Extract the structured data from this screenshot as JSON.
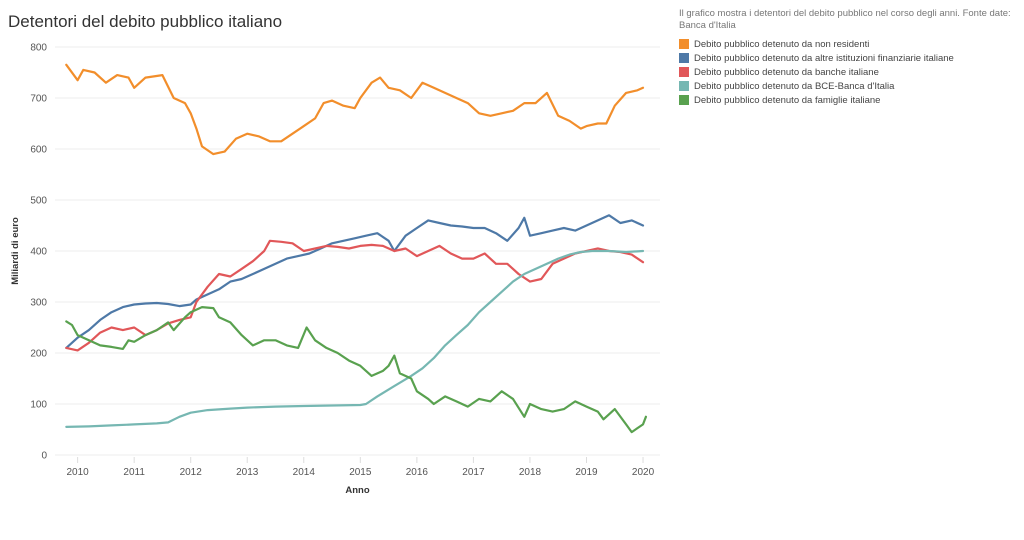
{
  "title": "Detentori del debito pubblico italiano",
  "colors": {
    "non_residenti": "#f28e2b",
    "altre_istituzioni": "#4e79a7",
    "banche": "#e15759",
    "bce": "#76b7b2",
    "famiglie": "#59a14f",
    "grid": "#eeeeee",
    "axis_text": "#555555"
  },
  "legend": {
    "description": "Il grafico mostra i detentori del debito pubblico nel corso degli anni. Fonte date: Banca d'Italia",
    "items": [
      "Debito pubblico detenuto da non residenti",
      "Debito pubblico detenuto da altre istituzioni finanziarie italiane",
      "Debito pubblico detenuto da banche italiane",
      "Debito pubblico detenuto da BCE-Banca d'Italia",
      "Debito pubblico detenuto da famiglie italiane"
    ]
  },
  "chart_data": {
    "type": "line",
    "title": "Detentori del debito pubblico italiano",
    "xlabel": "Anno",
    "ylabel": "Miliardi di euro",
    "xlim": [
      2009.6,
      2020.3
    ],
    "ylim": [
      0,
      800
    ],
    "xticks": [
      2010,
      2011,
      2012,
      2013,
      2014,
      2015,
      2016,
      2017,
      2018,
      2019,
      2020
    ],
    "yticks": [
      0,
      100,
      200,
      300,
      400,
      500,
      600,
      700,
      800
    ],
    "grid": true,
    "legend_position": "top-right",
    "series": [
      {
        "name": "Debito pubblico detenuto da non residenti",
        "color_key": "non_residenti",
        "points": [
          [
            2009.8,
            765
          ],
          [
            2010.0,
            735
          ],
          [
            2010.1,
            755
          ],
          [
            2010.3,
            750
          ],
          [
            2010.5,
            730
          ],
          [
            2010.7,
            745
          ],
          [
            2010.9,
            740
          ],
          [
            2011.0,
            720
          ],
          [
            2011.2,
            740
          ],
          [
            2011.5,
            745
          ],
          [
            2011.7,
            700
          ],
          [
            2011.9,
            690
          ],
          [
            2012.0,
            670
          ],
          [
            2012.1,
            640
          ],
          [
            2012.2,
            605
          ],
          [
            2012.4,
            590
          ],
          [
            2012.6,
            595
          ],
          [
            2012.8,
            620
          ],
          [
            2013.0,
            630
          ],
          [
            2013.2,
            625
          ],
          [
            2013.4,
            615
          ],
          [
            2013.6,
            615
          ],
          [
            2013.8,
            630
          ],
          [
            2014.0,
            645
          ],
          [
            2014.2,
            660
          ],
          [
            2014.35,
            690
          ],
          [
            2014.5,
            695
          ],
          [
            2014.7,
            685
          ],
          [
            2014.9,
            680
          ],
          [
            2015.0,
            700
          ],
          [
            2015.2,
            730
          ],
          [
            2015.35,
            740
          ],
          [
            2015.5,
            720
          ],
          [
            2015.7,
            715
          ],
          [
            2015.9,
            700
          ],
          [
            2016.1,
            730
          ],
          [
            2016.3,
            720
          ],
          [
            2016.5,
            710
          ],
          [
            2016.7,
            700
          ],
          [
            2016.9,
            690
          ],
          [
            2017.1,
            670
          ],
          [
            2017.3,
            665
          ],
          [
            2017.5,
            670
          ],
          [
            2017.7,
            675
          ],
          [
            2017.9,
            690
          ],
          [
            2018.1,
            690
          ],
          [
            2018.3,
            710
          ],
          [
            2018.5,
            665
          ],
          [
            2018.7,
            655
          ],
          [
            2018.9,
            640
          ],
          [
            2019.0,
            645
          ],
          [
            2019.2,
            650
          ],
          [
            2019.35,
            650
          ],
          [
            2019.5,
            685
          ],
          [
            2019.7,
            710
          ],
          [
            2019.9,
            715
          ],
          [
            2020.0,
            720
          ]
        ]
      },
      {
        "name": "Debito pubblico detenuto da altre istituzioni finanziarie italiane",
        "color_key": "altre_istituzioni",
        "points": [
          [
            2009.8,
            210
          ],
          [
            2010.0,
            230
          ],
          [
            2010.2,
            245
          ],
          [
            2010.4,
            265
          ],
          [
            2010.6,
            280
          ],
          [
            2010.8,
            290
          ],
          [
            2011.0,
            295
          ],
          [
            2011.2,
            297
          ],
          [
            2011.4,
            298
          ],
          [
            2011.6,
            296
          ],
          [
            2011.8,
            292
          ],
          [
            2012.0,
            295
          ],
          [
            2012.1,
            305
          ],
          [
            2012.3,
            315
          ],
          [
            2012.5,
            325
          ],
          [
            2012.7,
            340
          ],
          [
            2012.9,
            345
          ],
          [
            2013.1,
            355
          ],
          [
            2013.3,
            365
          ],
          [
            2013.5,
            375
          ],
          [
            2013.7,
            385
          ],
          [
            2013.9,
            390
          ],
          [
            2014.1,
            395
          ],
          [
            2014.3,
            405
          ],
          [
            2014.5,
            415
          ],
          [
            2014.7,
            420
          ],
          [
            2014.9,
            425
          ],
          [
            2015.1,
            430
          ],
          [
            2015.3,
            435
          ],
          [
            2015.5,
            420
          ],
          [
            2015.6,
            400
          ],
          [
            2015.8,
            430
          ],
          [
            2016.0,
            445
          ],
          [
            2016.2,
            460
          ],
          [
            2016.4,
            455
          ],
          [
            2016.6,
            450
          ],
          [
            2016.8,
            448
          ],
          [
            2017.0,
            445
          ],
          [
            2017.2,
            445
          ],
          [
            2017.4,
            435
          ],
          [
            2017.6,
            420
          ],
          [
            2017.8,
            445
          ],
          [
            2017.9,
            465
          ],
          [
            2018.0,
            430
          ],
          [
            2018.2,
            435
          ],
          [
            2018.4,
            440
          ],
          [
            2018.6,
            445
          ],
          [
            2018.8,
            440
          ],
          [
            2019.0,
            450
          ],
          [
            2019.2,
            460
          ],
          [
            2019.4,
            470
          ],
          [
            2019.6,
            455
          ],
          [
            2019.8,
            460
          ],
          [
            2020.0,
            450
          ]
        ]
      },
      {
        "name": "Debito pubblico detenuto da banche italiane",
        "color_key": "banche",
        "points": [
          [
            2009.8,
            210
          ],
          [
            2010.0,
            205
          ],
          [
            2010.2,
            220
          ],
          [
            2010.4,
            240
          ],
          [
            2010.6,
            250
          ],
          [
            2010.8,
            245
          ],
          [
            2011.0,
            250
          ],
          [
            2011.2,
            235
          ],
          [
            2011.4,
            245
          ],
          [
            2011.6,
            258
          ],
          [
            2011.8,
            265
          ],
          [
            2012.0,
            270
          ],
          [
            2012.1,
            300
          ],
          [
            2012.3,
            330
          ],
          [
            2012.5,
            355
          ],
          [
            2012.7,
            350
          ],
          [
            2012.9,
            365
          ],
          [
            2013.1,
            380
          ],
          [
            2013.3,
            400
          ],
          [
            2013.4,
            420
          ],
          [
            2013.6,
            418
          ],
          [
            2013.8,
            415
          ],
          [
            2014.0,
            400
          ],
          [
            2014.2,
            405
          ],
          [
            2014.4,
            410
          ],
          [
            2014.6,
            408
          ],
          [
            2014.8,
            405
          ],
          [
            2015.0,
            410
          ],
          [
            2015.2,
            412
          ],
          [
            2015.4,
            410
          ],
          [
            2015.6,
            400
          ],
          [
            2015.8,
            405
          ],
          [
            2016.0,
            390
          ],
          [
            2016.2,
            400
          ],
          [
            2016.4,
            410
          ],
          [
            2016.6,
            395
          ],
          [
            2016.8,
            385
          ],
          [
            2017.0,
            385
          ],
          [
            2017.2,
            395
          ],
          [
            2017.4,
            375
          ],
          [
            2017.6,
            375
          ],
          [
            2017.8,
            355
          ],
          [
            2018.0,
            340
          ],
          [
            2018.2,
            345
          ],
          [
            2018.4,
            375
          ],
          [
            2018.6,
            385
          ],
          [
            2018.8,
            395
          ],
          [
            2019.0,
            400
          ],
          [
            2019.2,
            405
          ],
          [
            2019.4,
            400
          ],
          [
            2019.6,
            398
          ],
          [
            2019.8,
            393
          ],
          [
            2020.0,
            378
          ]
        ]
      },
      {
        "name": "Debito pubblico detenuto da BCE-Banca d'Italia",
        "color_key": "bce",
        "points": [
          [
            2009.8,
            55
          ],
          [
            2010.2,
            56
          ],
          [
            2010.6,
            58
          ],
          [
            2011.0,
            60
          ],
          [
            2011.4,
            62
          ],
          [
            2011.6,
            64
          ],
          [
            2011.8,
            75
          ],
          [
            2012.0,
            83
          ],
          [
            2012.3,
            88
          ],
          [
            2012.7,
            91
          ],
          [
            2013.0,
            93
          ],
          [
            2013.5,
            95
          ],
          [
            2014.0,
            96
          ],
          [
            2014.5,
            97
          ],
          [
            2015.0,
            98
          ],
          [
            2015.1,
            100
          ],
          [
            2015.3,
            115
          ],
          [
            2015.6,
            135
          ],
          [
            2015.9,
            155
          ],
          [
            2016.1,
            170
          ],
          [
            2016.3,
            190
          ],
          [
            2016.5,
            215
          ],
          [
            2016.7,
            235
          ],
          [
            2016.9,
            255
          ],
          [
            2017.1,
            280
          ],
          [
            2017.3,
            300
          ],
          [
            2017.5,
            320
          ],
          [
            2017.7,
            340
          ],
          [
            2017.9,
            355
          ],
          [
            2018.1,
            365
          ],
          [
            2018.3,
            375
          ],
          [
            2018.5,
            385
          ],
          [
            2018.7,
            393
          ],
          [
            2018.9,
            398
          ],
          [
            2019.1,
            400
          ],
          [
            2019.4,
            400
          ],
          [
            2019.7,
            398
          ],
          [
            2020.0,
            400
          ]
        ]
      },
      {
        "name": "Debito pubblico detenuto da famiglie italiane",
        "color_key": "famiglie",
        "points": [
          [
            2009.8,
            262
          ],
          [
            2009.9,
            255
          ],
          [
            2010.0,
            235
          ],
          [
            2010.2,
            225
          ],
          [
            2010.4,
            215
          ],
          [
            2010.6,
            212
          ],
          [
            2010.8,
            208
          ],
          [
            2010.9,
            225
          ],
          [
            2011.0,
            222
          ],
          [
            2011.2,
            235
          ],
          [
            2011.4,
            245
          ],
          [
            2011.6,
            260
          ],
          [
            2011.7,
            245
          ],
          [
            2011.9,
            270
          ],
          [
            2012.0,
            280
          ],
          [
            2012.2,
            290
          ],
          [
            2012.4,
            288
          ],
          [
            2012.5,
            270
          ],
          [
            2012.7,
            260
          ],
          [
            2012.9,
            235
          ],
          [
            2013.1,
            215
          ],
          [
            2013.3,
            225
          ],
          [
            2013.5,
            225
          ],
          [
            2013.7,
            215
          ],
          [
            2013.9,
            210
          ],
          [
            2014.05,
            250
          ],
          [
            2014.2,
            225
          ],
          [
            2014.4,
            210
          ],
          [
            2014.6,
            200
          ],
          [
            2014.8,
            185
          ],
          [
            2015.0,
            175
          ],
          [
            2015.2,
            155
          ],
          [
            2015.4,
            165
          ],
          [
            2015.5,
            175
          ],
          [
            2015.6,
            195
          ],
          [
            2015.7,
            160
          ],
          [
            2015.9,
            150
          ],
          [
            2016.0,
            125
          ],
          [
            2016.2,
            110
          ],
          [
            2016.3,
            100
          ],
          [
            2016.5,
            115
          ],
          [
            2016.7,
            105
          ],
          [
            2016.9,
            95
          ],
          [
            2017.1,
            110
          ],
          [
            2017.3,
            105
          ],
          [
            2017.5,
            125
          ],
          [
            2017.7,
            110
          ],
          [
            2017.9,
            75
          ],
          [
            2018.0,
            100
          ],
          [
            2018.2,
            90
          ],
          [
            2018.4,
            85
          ],
          [
            2018.6,
            90
          ],
          [
            2018.8,
            105
          ],
          [
            2019.0,
            95
          ],
          [
            2019.2,
            85
          ],
          [
            2019.3,
            70
          ],
          [
            2019.5,
            90
          ],
          [
            2019.7,
            60
          ],
          [
            2019.8,
            45
          ],
          [
            2020.0,
            60
          ],
          [
            2020.05,
            75
          ]
        ]
      }
    ]
  }
}
